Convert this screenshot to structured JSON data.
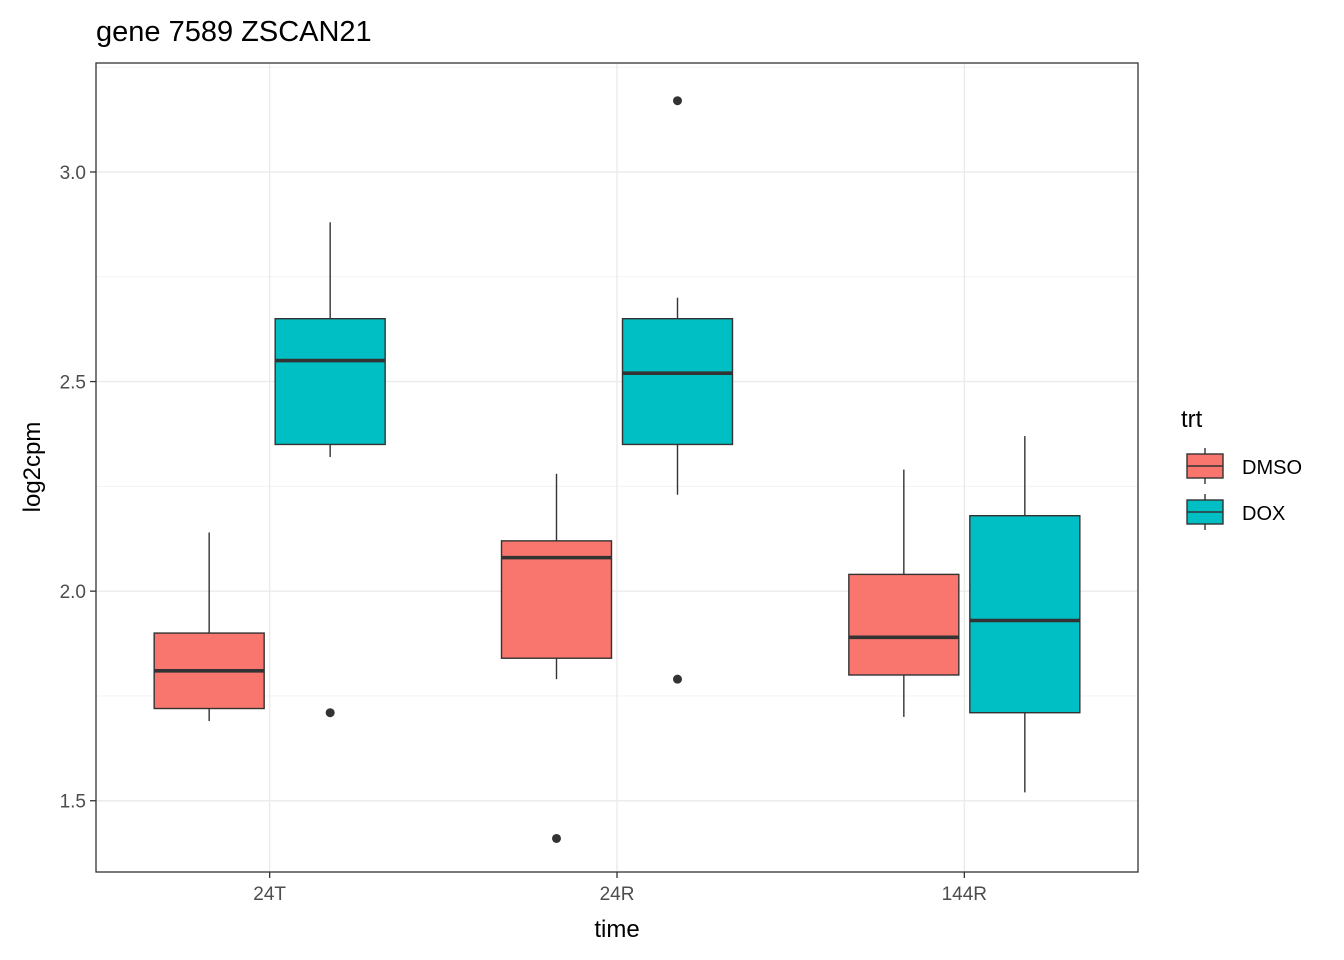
{
  "chart_data": {
    "type": "boxplot",
    "title": "gene 7589 ZSCAN21",
    "xlabel": "time",
    "ylabel": "log2cpm",
    "categories": [
      "24T",
      "24R",
      "144R"
    ],
    "ylim": [
      1.33,
      3.26
    ],
    "yticks": [
      1.5,
      2.0,
      2.5,
      3.0
    ],
    "ytick_labels": [
      "1.5",
      "2.0",
      "2.5",
      "3.0"
    ],
    "grid": true,
    "legend": {
      "title": "trt",
      "position": "right"
    },
    "series": [
      {
        "name": "DMSO",
        "color": "#F8766D",
        "boxes": [
          {
            "category": "24T",
            "whisker_low": 1.69,
            "q1": 1.72,
            "median": 1.81,
            "q3": 1.9,
            "whisker_high": 2.14,
            "outliers": []
          },
          {
            "category": "24R",
            "whisker_low": 1.79,
            "q1": 1.84,
            "median": 2.08,
            "q3": 2.12,
            "whisker_high": 2.28,
            "outliers": [
              1.41
            ]
          },
          {
            "category": "144R",
            "whisker_low": 1.7,
            "q1": 1.8,
            "median": 1.89,
            "q3": 2.04,
            "whisker_high": 2.29,
            "outliers": []
          }
        ]
      },
      {
        "name": "DOX",
        "color": "#00BFC4",
        "boxes": [
          {
            "category": "24T",
            "whisker_low": 2.32,
            "q1": 2.35,
            "median": 2.55,
            "q3": 2.65,
            "whisker_high": 2.88,
            "outliers": [
              1.71
            ]
          },
          {
            "category": "24R",
            "whisker_low": 2.23,
            "q1": 2.35,
            "median": 2.52,
            "q3": 2.65,
            "whisker_high": 2.7,
            "outliers": [
              3.17,
              1.79
            ]
          },
          {
            "category": "144R",
            "whisker_low": 1.52,
            "q1": 1.71,
            "median": 1.93,
            "q3": 2.18,
            "whisker_high": 2.37,
            "outliers": []
          }
        ]
      }
    ]
  }
}
